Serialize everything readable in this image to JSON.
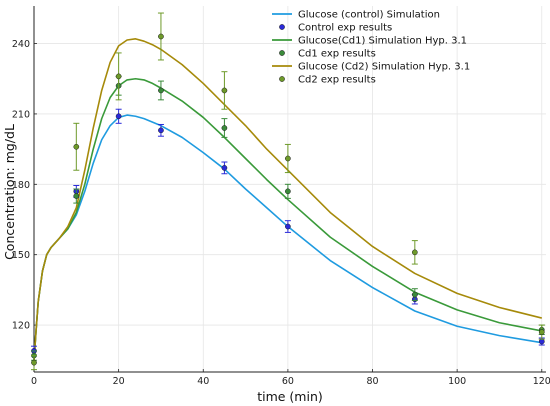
{
  "chart_data": {
    "type": "line",
    "title": "",
    "xlabel": "time (min)",
    "ylabel": "Concentration: mg/dL",
    "xlim": [
      0,
      121
    ],
    "ylim": [
      100,
      256
    ],
    "xticks": [
      0,
      20,
      40,
      60,
      80,
      100,
      120
    ],
    "yticks": [
      120,
      150,
      180,
      210,
      240
    ],
    "grid": true,
    "legend_position": "top-right",
    "series": [
      {
        "name": "Glucose (control) Simulation",
        "kind": "line",
        "color": "#1f9be0",
        "x": [
          0,
          0.5,
          1,
          2,
          3,
          4,
          5,
          6,
          8,
          10,
          12,
          14,
          16,
          18,
          20,
          22,
          24,
          26,
          28,
          30,
          35,
          40,
          45,
          50,
          55,
          60,
          70,
          80,
          90,
          100,
          110,
          120
        ],
        "y": [
          105,
          118,
          130,
          143,
          150,
          153,
          155,
          157,
          161,
          167,
          177,
          189,
          199,
          205,
          208.5,
          209.5,
          209,
          208,
          206.5,
          205,
          200,
          193.5,
          186.5,
          178,
          170,
          162,
          147.5,
          136,
          126,
          119.5,
          115.5,
          112.5
        ]
      },
      {
        "name": "Control exp results",
        "kind": "scatter",
        "color": "#2a2ad8",
        "x": [
          0,
          10,
          20,
          30,
          45,
          60,
          90,
          120
        ],
        "y": [
          109,
          177,
          209,
          203,
          187,
          162,
          131,
          113
        ],
        "err": [
          2,
          2.5,
          3,
          2.5,
          2.5,
          2.5,
          2,
          1.5
        ]
      },
      {
        "name": "Glucose(Cd1) Simulation Hyp. 3.1",
        "kind": "line",
        "color": "#3a9a3a",
        "x": [
          0,
          0.5,
          1,
          2,
          3,
          4,
          5,
          6,
          8,
          10,
          12,
          14,
          16,
          18,
          20,
          22,
          24,
          26,
          28,
          30,
          35,
          40,
          45,
          50,
          55,
          60,
          70,
          80,
          90,
          100,
          110,
          120
        ],
        "y": [
          105,
          118,
          130,
          143,
          150,
          153,
          155,
          157,
          161,
          168,
          180,
          195,
          208,
          217,
          222,
          224.5,
          225,
          224.5,
          223,
          221,
          215.5,
          208.5,
          200,
          191,
          182,
          173.5,
          157.5,
          145,
          134,
          126.5,
          121,
          117.5
        ]
      },
      {
        "name": "Cd1 exp results",
        "kind": "scatter",
        "color": "#3a8a3a",
        "x": [
          0,
          10,
          20,
          30,
          45,
          60,
          90,
          120
        ],
        "y": [
          107,
          175,
          222,
          220,
          204,
          177,
          133,
          118
        ],
        "err": [
          2,
          3,
          4,
          4,
          4,
          3,
          2.5,
          2
        ]
      },
      {
        "name": "Glucose (Cd2) Simulation  Hyp. 3.1",
        "kind": "line",
        "color": "#a68a0a",
        "x": [
          0,
          0.5,
          1,
          2,
          3,
          4,
          5,
          6,
          8,
          10,
          12,
          14,
          16,
          18,
          20,
          22,
          24,
          26,
          28,
          30,
          35,
          40,
          45,
          50,
          55,
          60,
          70,
          80,
          90,
          100,
          110,
          120
        ],
        "y": [
          105,
          118,
          130,
          143,
          150,
          153,
          155,
          157,
          162,
          170,
          186,
          204,
          220,
          232,
          239,
          241.5,
          242,
          241,
          239.5,
          237.5,
          231,
          223,
          214,
          205,
          195,
          186,
          168,
          153.5,
          142,
          133.5,
          127.5,
          123
        ]
      },
      {
        "name": "Cd2 exp results",
        "kind": "scatter",
        "color": "#6e9a2a",
        "x": [
          0,
          10,
          20,
          30,
          45,
          60,
          90,
          120
        ],
        "y": [
          104,
          196,
          226,
          243,
          220,
          191,
          151,
          117
        ],
        "err": [
          3,
          10,
          10,
          10,
          8,
          6,
          5,
          3
        ]
      }
    ]
  }
}
